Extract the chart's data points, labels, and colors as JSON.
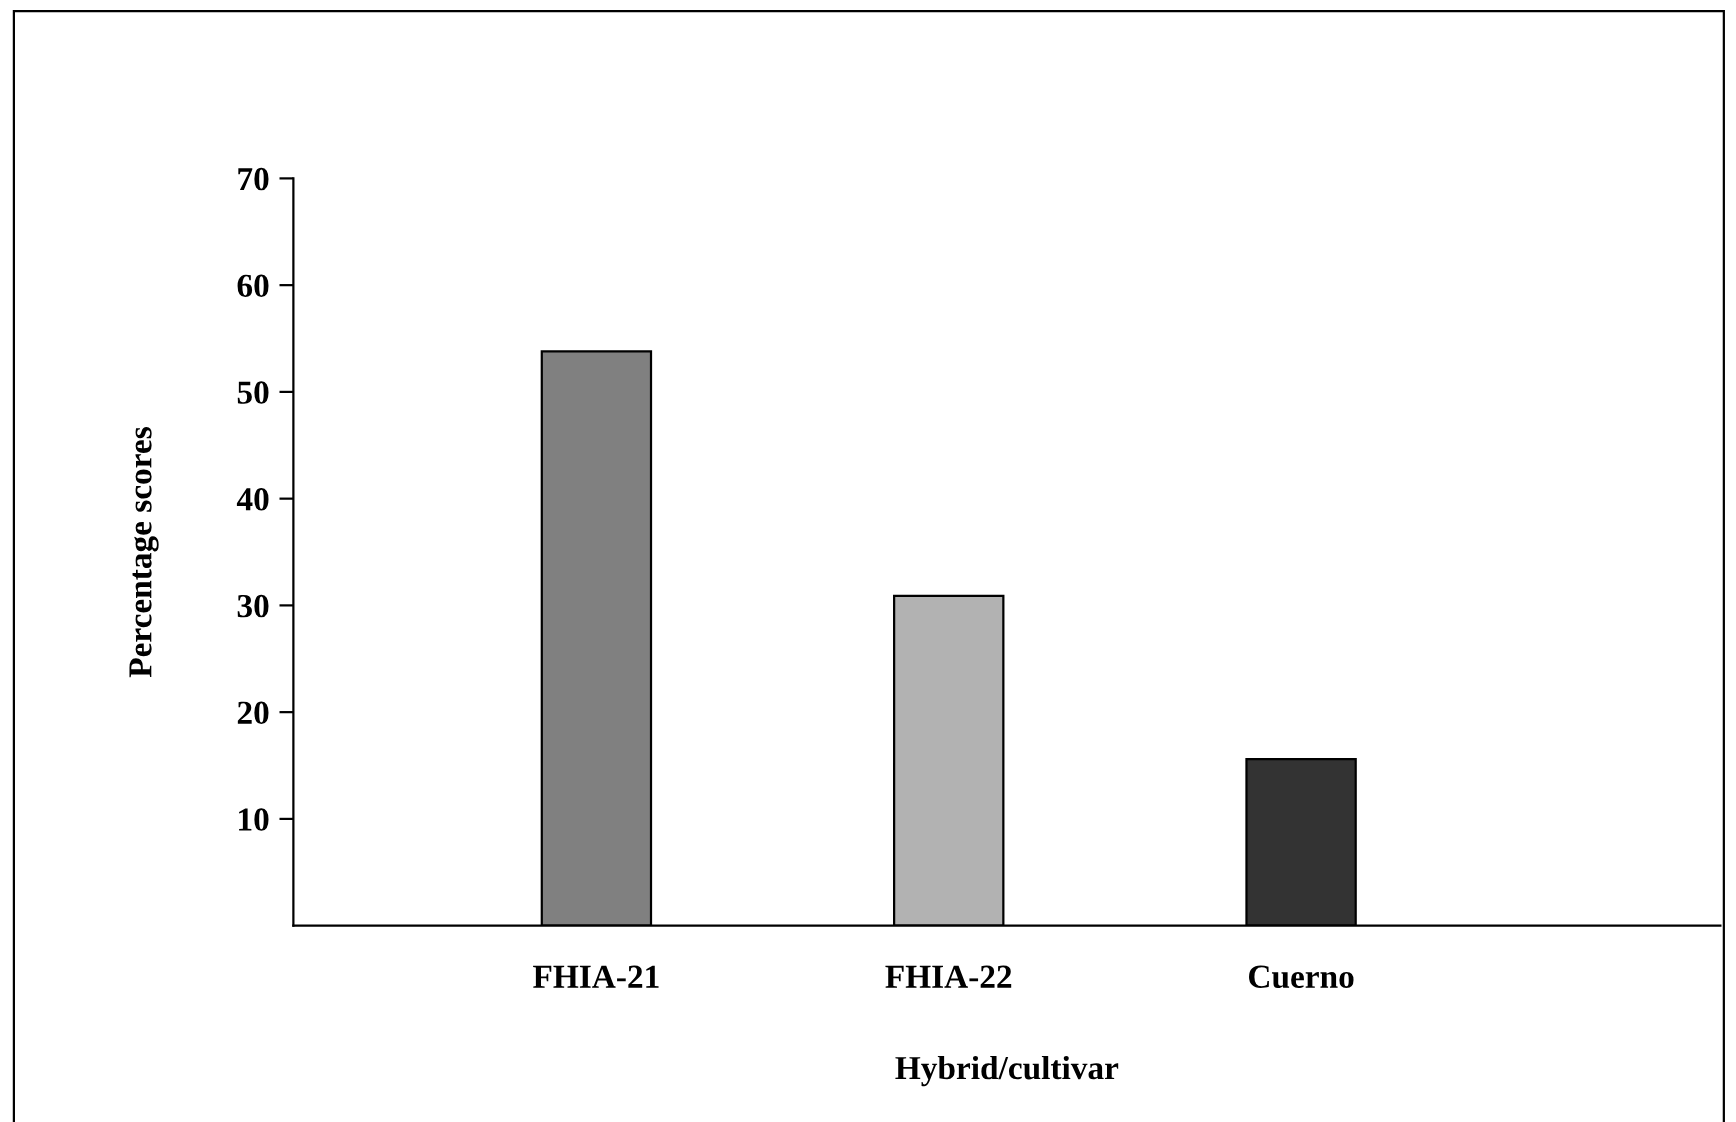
{
  "chart_data": {
    "type": "bar",
    "xlabel": "Hybrid/cultivar",
    "ylabel": "Percentage scores",
    "categories": [
      "FHIA-21",
      "FHIA-22",
      "Cuerno"
    ],
    "values": [
      53.8,
      30.9,
      15.6
    ],
    "colors": [
      "#808080",
      "#b2b2b2",
      "#333333"
    ],
    "ylim": [
      0,
      70
    ],
    "yticks": [
      10,
      20,
      30,
      40,
      50,
      60,
      70
    ],
    "grid": false,
    "legend": false
  }
}
